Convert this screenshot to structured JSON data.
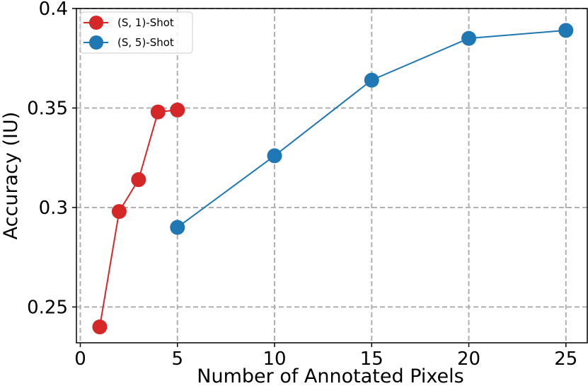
{
  "chart_data": {
    "type": "line",
    "xlabel": "Number of Annotated Pixels",
    "ylabel": "Accuracy (IU)",
    "xlim": [
      -0.2,
      26.1
    ],
    "ylim": [
      0.232,
      0.4
    ],
    "x_ticks": [
      {
        "value": 0,
        "label": "0"
      },
      {
        "value": 5,
        "label": "5"
      },
      {
        "value": 10,
        "label": "10"
      },
      {
        "value": 15,
        "label": "15"
      },
      {
        "value": 20,
        "label": "20"
      },
      {
        "value": 25,
        "label": "25"
      }
    ],
    "y_ticks": [
      {
        "value": 0.25,
        "label": "0.25"
      },
      {
        "value": 0.3,
        "label": "0.3"
      },
      {
        "value": 0.35,
        "label": "0.35"
      },
      {
        "value": 0.4,
        "label": "0.4"
      }
    ],
    "grid": true,
    "legend_position": "top-left",
    "series": [
      {
        "name": "(S, 1)-Shot",
        "color": "#d62728",
        "x": [
          1,
          2,
          3,
          4,
          5
        ],
        "y": [
          0.24,
          0.298,
          0.314,
          0.348,
          0.349
        ]
      },
      {
        "name": "(S, 5)-Shot",
        "color": "#1f77b4",
        "x": [
          5,
          10,
          15,
          20,
          25
        ],
        "y": [
          0.29,
          0.326,
          0.364,
          0.385,
          0.389
        ]
      }
    ]
  }
}
